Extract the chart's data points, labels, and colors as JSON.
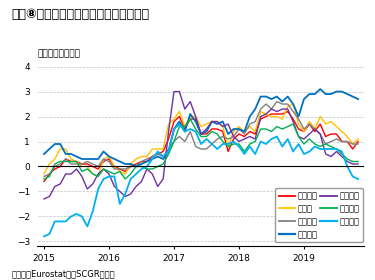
{
  "title": "図表⑧　ユーロ圏各国の消費者物価指数",
  "subtitle": "（前年同月比％）",
  "source": "（出所：EurostatよりSCGR作成）",
  "ylim": [
    -3.2,
    4.2
  ],
  "yticks": [
    -3,
    -2,
    -1,
    0,
    1,
    2,
    3,
    4
  ],
  "xlabel_years": [
    "2015",
    "2016",
    "2017",
    "2018",
    "2019"
  ],
  "series": {
    "ユーロ圏": {
      "color": "#ff0000",
      "lw": 1.0,
      "data": [
        -0.6,
        -0.3,
        -0.1,
        0.0,
        0.3,
        0.2,
        0.2,
        0.1,
        0.1,
        0.0,
        -0.1,
        0.2,
        0.3,
        0.0,
        -0.1,
        -0.2,
        0.0,
        0.1,
        0.2,
        0.2,
        0.4,
        0.5,
        0.6,
        1.1,
        1.8,
        2.0,
        1.5,
        1.9,
        1.9,
        1.3,
        1.3,
        1.5,
        1.5,
        1.4,
        0.6,
        1.1,
        1.3,
        1.2,
        1.4,
        1.3,
        1.9,
        2.0,
        2.1,
        2.1,
        2.1,
        2.2,
        1.9,
        1.5,
        1.4,
        1.7,
        1.4,
        1.7,
        1.2,
        1.3,
        1.3,
        1.0,
        1.0,
        0.7,
        1.0
      ]
    },
    "ドイツ": {
      "color": "#ffc000",
      "lw": 1.0,
      "data": [
        -0.3,
        0.1,
        0.3,
        0.7,
        0.7,
        0.3,
        0.2,
        0.0,
        0.0,
        -0.3,
        -0.4,
        0.3,
        0.4,
        0.0,
        -0.2,
        -0.3,
        0.1,
        0.3,
        0.4,
        0.4,
        0.7,
        0.7,
        0.7,
        1.7,
        1.9,
        2.2,
        1.6,
        2.0,
        2.0,
        1.6,
        1.7,
        1.8,
        1.8,
        1.6,
        0.8,
        1.4,
        1.6,
        1.4,
        1.6,
        1.4,
        2.2,
        2.1,
        2.0,
        2.0,
        1.9,
        2.4,
        2.5,
        1.7,
        1.4,
        1.8,
        1.5,
        2.0,
        1.7,
        1.8,
        1.6,
        1.4,
        1.2,
        0.9,
        1.1
      ]
    },
    "フランス": {
      "color": "#808080",
      "lw": 1.0,
      "data": [
        -0.4,
        -0.3,
        0.0,
        0.1,
        0.3,
        0.1,
        0.1,
        0.1,
        0.2,
        0.1,
        0.0,
        0.3,
        0.2,
        -0.1,
        -0.1,
        -0.1,
        0.0,
        0.0,
        0.2,
        0.3,
        0.4,
        0.5,
        0.4,
        0.7,
        1.0,
        1.2,
        1.0,
        1.4,
        0.8,
        0.7,
        0.7,
        0.9,
        1.1,
        1.2,
        1.1,
        1.2,
        1.5,
        1.3,
        1.7,
        1.8,
        2.3,
        2.5,
        2.3,
        2.6,
        2.5,
        2.5,
        2.2,
        1.9,
        1.5,
        1.7,
        1.5,
        1.3,
        0.9,
        1.0,
        1.1,
        1.0,
        1.0,
        0.9,
        0.9
      ]
    },
    "オランダ": {
      "color": "#0070c0",
      "lw": 1.3,
      "data": [
        0.5,
        0.7,
        0.9,
        0.9,
        0.5,
        0.5,
        0.4,
        0.3,
        0.3,
        0.3,
        0.3,
        0.6,
        0.4,
        0.3,
        0.2,
        0.1,
        0.1,
        0.0,
        0.1,
        0.2,
        0.3,
        0.4,
        0.3,
        0.6,
        1.5,
        1.8,
        1.4,
        2.1,
        1.8,
        1.3,
        1.4,
        1.8,
        1.7,
        1.8,
        1.3,
        1.5,
        1.5,
        1.4,
        2.0,
        2.3,
        2.8,
        2.8,
        2.7,
        2.8,
        2.6,
        2.8,
        2.5,
        2.0,
        2.7,
        2.9,
        2.9,
        3.1,
        2.9,
        2.9,
        3.0,
        3.0,
        2.9,
        2.8,
        2.7
      ]
    },
    "スペイン": {
      "color": "#7030a0",
      "lw": 1.0,
      "data": [
        -1.3,
        -1.2,
        -0.8,
        -0.7,
        -0.3,
        -0.3,
        -0.1,
        -0.4,
        -0.9,
        -0.7,
        -0.3,
        -0.1,
        -0.3,
        -0.8,
        -1.0,
        -1.2,
        -1.1,
        -0.8,
        -0.6,
        -0.1,
        -0.3,
        -0.8,
        -0.5,
        1.4,
        3.0,
        3.0,
        2.3,
        2.6,
        2.0,
        1.3,
        1.5,
        1.8,
        1.8,
        1.6,
        1.7,
        1.2,
        1.0,
        1.1,
        1.2,
        1.1,
        2.0,
        2.1,
        2.3,
        2.2,
        2.3,
        2.3,
        1.8,
        1.2,
        1.1,
        1.3,
        1.5,
        1.3,
        0.5,
        0.4,
        0.6,
        0.4,
        0.2,
        0.1,
        0.1
      ]
    },
    "イタリア": {
      "color": "#00b050",
      "lw": 1.0,
      "data": [
        -0.5,
        -0.4,
        0.1,
        0.2,
        0.2,
        0.2,
        0.2,
        -0.2,
        -0.1,
        -0.3,
        -0.4,
        -0.1,
        -0.2,
        -0.3,
        -0.2,
        -0.5,
        -0.3,
        0.0,
        0.0,
        -0.1,
        -0.1,
        0.0,
        0.1,
        0.5,
        1.0,
        1.6,
        1.6,
        1.9,
        1.5,
        1.2,
        1.2,
        1.4,
        1.3,
        1.0,
        0.8,
        0.9,
        0.9,
        0.6,
        0.9,
        1.0,
        1.5,
        1.5,
        1.4,
        1.6,
        1.5,
        1.6,
        1.7,
        1.2,
        0.9,
        1.1,
        0.9,
        0.8,
        0.9,
        0.8,
        0.7,
        0.5,
        0.3,
        0.2,
        0.2
      ]
    },
    "ギリシャ": {
      "color": "#00b0f0",
      "lw": 1.3,
      "data": [
        -2.8,
        -2.7,
        -2.2,
        -2.2,
        -2.2,
        -2.0,
        -1.9,
        -2.0,
        -2.4,
        -1.8,
        -0.9,
        -0.5,
        -0.4,
        -0.4,
        -1.5,
        -1.1,
        -0.5,
        -0.3,
        -0.1,
        0.0,
        0.3,
        0.6,
        0.4,
        0.6,
        1.5,
        1.7,
        1.4,
        1.5,
        1.4,
        0.9,
        1.1,
        0.9,
        0.7,
        0.9,
        0.9,
        1.0,
        0.8,
        0.5,
        0.8,
        0.5,
        1.0,
        0.9,
        1.1,
        1.2,
        0.8,
        1.1,
        0.6,
        0.9,
        0.5,
        0.6,
        0.8,
        0.7,
        0.7,
        0.7,
        0.7,
        0.6,
        0.0,
        -0.4,
        -0.5
      ]
    }
  }
}
